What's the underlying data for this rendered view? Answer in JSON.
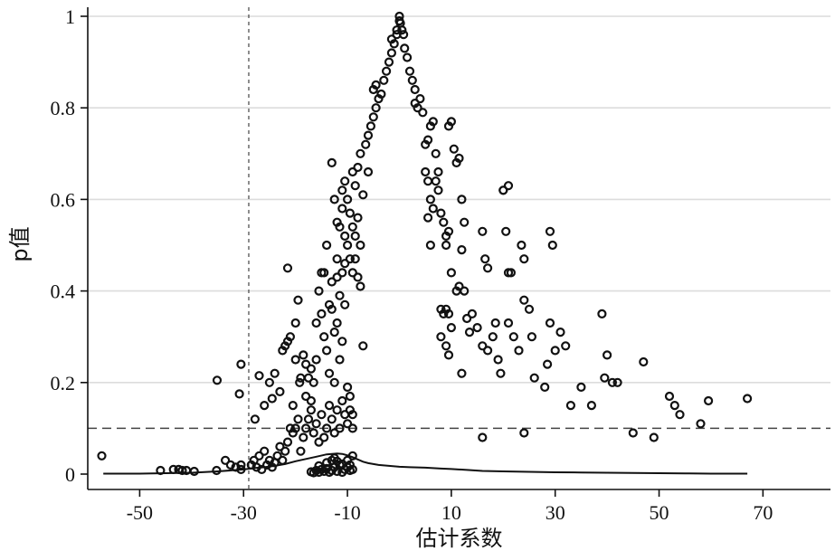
{
  "chart_data": {
    "type": "scatter",
    "title": "",
    "xlabel": "估计系数",
    "ylabel": "p值",
    "xlim": [
      -60,
      83
    ],
    "ylim": [
      0,
      1.01
    ],
    "x_ticks": [
      -50,
      -30,
      -10,
      10,
      30,
      50,
      70
    ],
    "x_tick_labels": [
      "-50",
      "-30",
      "-10",
      "10",
      "30",
      "50",
      "70"
    ],
    "y_ticks": [
      0,
      0.2,
      0.4,
      0.6,
      0.8,
      1
    ],
    "y_tick_labels": [
      "0",
      "0.2",
      "0.4",
      "0.6",
      "0.8",
      "1"
    ],
    "grid": "horizontal",
    "reference_lines": {
      "horizontal_y": 0.1,
      "vertical_x": -29
    },
    "points": [
      [
        -57.3,
        0.04
      ],
      [
        -46,
        0.008
      ],
      [
        -43.5,
        0.01
      ],
      [
        -42.5,
        0.01
      ],
      [
        -41.8,
        0.008
      ],
      [
        -41,
        0.008
      ],
      [
        -39.5,
        0.006
      ],
      [
        -35.2,
        0.008
      ],
      [
        -33.5,
        0.03
      ],
      [
        -32.5,
        0.02
      ],
      [
        -31.5,
        0.015
      ],
      [
        -30.5,
        0.01
      ],
      [
        -30.5,
        0.02
      ],
      [
        -35.1,
        0.205
      ],
      [
        -30.8,
        0.175
      ],
      [
        -30.5,
        0.24
      ],
      [
        -28.5,
        0.02
      ],
      [
        -28,
        0.03
      ],
      [
        -27.5,
        0.015
      ],
      [
        -27,
        0.04
      ],
      [
        -26.5,
        0.01
      ],
      [
        -26,
        0.05
      ],
      [
        -25.5,
        0.02
      ],
      [
        -25,
        0.03
      ],
      [
        -24.5,
        0.015
      ],
      [
        -24,
        0.025
      ],
      [
        -23.5,
        0.04
      ],
      [
        -23,
        0.06
      ],
      [
        -22.5,
        0.03
      ],
      [
        -22,
        0.05
      ],
      [
        -21.5,
        0.07
      ],
      [
        -21,
        0.1
      ],
      [
        -20.5,
        0.09
      ],
      [
        -20,
        0.1
      ],
      [
        -19.5,
        0.12
      ],
      [
        -19,
        0.05
      ],
      [
        -18.5,
        0.08
      ],
      [
        -27.8,
        0.12
      ],
      [
        -27,
        0.215
      ],
      [
        -26,
        0.15
      ],
      [
        -25,
        0.2
      ],
      [
        -24.5,
        0.165
      ],
      [
        -24,
        0.22
      ],
      [
        -23,
        0.18
      ],
      [
        -22.5,
        0.27
      ],
      [
        -22,
        0.28
      ],
      [
        -21.5,
        0.29
      ],
      [
        -21,
        0.3
      ],
      [
        -20.5,
        0.15
      ],
      [
        -20,
        0.33
      ],
      [
        -19.5,
        0.38
      ],
      [
        -21.5,
        0.45
      ],
      [
        -20,
        0.25
      ],
      [
        -19.2,
        0.2
      ],
      [
        -19,
        0.21
      ],
      [
        -18.5,
        0.26
      ],
      [
        -18,
        0.17
      ],
      [
        -18,
        0.24
      ],
      [
        -17.5,
        0.21
      ],
      [
        -17,
        0.23
      ],
      [
        -17,
        0.14
      ],
      [
        -16.5,
        0.2
      ],
      [
        -16,
        0.25
      ],
      [
        -16,
        0.33
      ],
      [
        -15.5,
        0.4
      ],
      [
        -15,
        0.44
      ],
      [
        -15,
        0.35
      ],
      [
        -14.5,
        0.44
      ],
      [
        -14.5,
        0.3
      ],
      [
        -14,
        0.5
      ],
      [
        -14,
        0.27
      ],
      [
        -13.5,
        0.37
      ],
      [
        -13.5,
        0.22
      ],
      [
        -13,
        0.36
      ],
      [
        -13,
        0.42
      ],
      [
        -12.5,
        0.31
      ],
      [
        -12.5,
        0.2
      ],
      [
        -12,
        0.33
      ],
      [
        -12,
        0.47
      ],
      [
        -11.5,
        0.39
      ],
      [
        -11.5,
        0.25
      ],
      [
        -11,
        0.44
      ],
      [
        -11,
        0.29
      ],
      [
        -10.5,
        0.46
      ],
      [
        -10.5,
        0.37
      ],
      [
        -18,
        0.1
      ],
      [
        -17.5,
        0.12
      ],
      [
        -17,
        0.16
      ],
      [
        -16.5,
        0.09
      ],
      [
        -16,
        0.11
      ],
      [
        -15.5,
        0.07
      ],
      [
        -15,
        0.13
      ],
      [
        -14.5,
        0.08
      ],
      [
        -14,
        0.1
      ],
      [
        -13.5,
        0.15
      ],
      [
        -13,
        0.12
      ],
      [
        -12.5,
        0.09
      ],
      [
        -12,
        0.14
      ],
      [
        -11.5,
        0.1
      ],
      [
        -11,
        0.16
      ],
      [
        -10.5,
        0.13
      ],
      [
        -10,
        0.19
      ],
      [
        -10,
        0.11
      ],
      [
        -9.5,
        0.14
      ],
      [
        -9.5,
        0.17
      ],
      [
        -9,
        0.1
      ],
      [
        -9,
        0.13
      ],
      [
        -17,
        0.005
      ],
      [
        -16.5,
        0.003
      ],
      [
        -16,
        0.008
      ],
      [
        -15.5,
        0.004
      ],
      [
        -15,
        0.01
      ],
      [
        -14.5,
        0.006
      ],
      [
        -14,
        0.012
      ],
      [
        -13.5,
        0.004
      ],
      [
        -13,
        0.008
      ],
      [
        -12.5,
        0.015
      ],
      [
        -12,
        0.006
      ],
      [
        -11.5,
        0.02
      ],
      [
        -11,
        0.004
      ],
      [
        -10.5,
        0.01
      ],
      [
        -10,
        0.03
      ],
      [
        -10,
        0.015
      ],
      [
        -9.5,
        0.02
      ],
      [
        -9.5,
        0.008
      ],
      [
        -9,
        0.04
      ],
      [
        -9,
        0.01
      ],
      [
        -14,
        0.025
      ],
      [
        -13,
        0.03
      ],
      [
        -12,
        0.028
      ],
      [
        -11,
        0.022
      ],
      [
        -15.5,
        0.018
      ],
      [
        -12.5,
        0.035
      ],
      [
        -13,
        0.68
      ],
      [
        -12.5,
        0.6
      ],
      [
        -12,
        0.55
      ],
      [
        -11.5,
        0.54
      ],
      [
        -11,
        0.62
      ],
      [
        -10.5,
        0.64
      ],
      [
        -10,
        0.6
      ],
      [
        -10,
        0.5
      ],
      [
        -9.5,
        0.57
      ],
      [
        -9.5,
        0.47
      ],
      [
        -9,
        0.66
      ],
      [
        -9,
        0.54
      ],
      [
        -8.5,
        0.63
      ],
      [
        -8.5,
        0.52
      ],
      [
        -8,
        0.67
      ],
      [
        -8,
        0.56
      ],
      [
        -7.5,
        0.7
      ],
      [
        -7.5,
        0.5
      ],
      [
        -7,
        0.61
      ],
      [
        -6.5,
        0.72
      ],
      [
        -6,
        0.74
      ],
      [
        -6,
        0.66
      ],
      [
        -5.5,
        0.76
      ],
      [
        -5,
        0.78
      ],
      [
        -11,
        0.58
      ],
      [
        -10.5,
        0.52
      ],
      [
        -12,
        0.43
      ],
      [
        -9,
        0.44
      ],
      [
        -8.5,
        0.47
      ],
      [
        -8,
        0.43
      ],
      [
        -7.5,
        0.41
      ],
      [
        -7,
        0.28
      ],
      [
        -5,
        0.84
      ],
      [
        -4.5,
        0.85
      ],
      [
        -4.5,
        0.8
      ],
      [
        -4,
        0.82
      ],
      [
        -3.5,
        0.83
      ],
      [
        -3,
        0.86
      ],
      [
        -2.5,
        0.88
      ],
      [
        -2,
        0.9
      ],
      [
        -1.5,
        0.92
      ],
      [
        -1.5,
        0.95
      ],
      [
        -1,
        0.94
      ],
      [
        -0.5,
        0.97
      ],
      [
        -0.5,
        0.96
      ],
      [
        0,
        0.99
      ],
      [
        0,
        1
      ],
      [
        0.2,
        0.985
      ],
      [
        0.5,
        0.97
      ],
      [
        0.8,
        0.96
      ],
      [
        1,
        0.93
      ],
      [
        1.5,
        0.91
      ],
      [
        2,
        0.88
      ],
      [
        2.5,
        0.86
      ],
      [
        3,
        0.84
      ],
      [
        3.5,
        0.8
      ],
      [
        3,
        0.81
      ],
      [
        4,
        0.82
      ],
      [
        4.5,
        0.79
      ],
      [
        5,
        0.72
      ],
      [
        5.5,
        0.73
      ],
      [
        6,
        0.76
      ],
      [
        6.5,
        0.77
      ],
      [
        7,
        0.7
      ],
      [
        7.5,
        0.66
      ],
      [
        5,
        0.66
      ],
      [
        5.5,
        0.64
      ],
      [
        6,
        0.6
      ],
      [
        6.5,
        0.58
      ],
      [
        7,
        0.64
      ],
      [
        5.5,
        0.56
      ],
      [
        6,
        0.5
      ],
      [
        7.5,
        0.62
      ],
      [
        8,
        0.57
      ],
      [
        8.5,
        0.55
      ],
      [
        9,
        0.52
      ],
      [
        9.5,
        0.76
      ],
      [
        10,
        0.77
      ],
      [
        10.5,
        0.71
      ],
      [
        11,
        0.68
      ],
      [
        11.5,
        0.69
      ],
      [
        12,
        0.6
      ],
      [
        12.5,
        0.55
      ],
      [
        9,
        0.5
      ],
      [
        9.5,
        0.53
      ],
      [
        10,
        0.44
      ],
      [
        11,
        0.4
      ],
      [
        11.5,
        0.41
      ],
      [
        12,
        0.49
      ],
      [
        8,
        0.36
      ],
      [
        8.5,
        0.35
      ],
      [
        9,
        0.36
      ],
      [
        9.5,
        0.35
      ],
      [
        8,
        0.3
      ],
      [
        9,
        0.28
      ],
      [
        9.5,
        0.26
      ],
      [
        10,
        0.32
      ],
      [
        12,
        0.22
      ],
      [
        12.5,
        0.4
      ],
      [
        13,
        0.34
      ],
      [
        13.5,
        0.31
      ],
      [
        14,
        0.35
      ],
      [
        15,
        0.32
      ],
      [
        16,
        0.53
      ],
      [
        16.5,
        0.47
      ],
      [
        17,
        0.45
      ],
      [
        18,
        0.3
      ],
      [
        18.5,
        0.33
      ],
      [
        19,
        0.25
      ],
      [
        19.5,
        0.22
      ],
      [
        20,
        0.62
      ],
      [
        20,
        0.62
      ],
      [
        21,
        0.63
      ],
      [
        20.5,
        0.53
      ],
      [
        21,
        0.44
      ],
      [
        21.5,
        0.44
      ],
      [
        21,
        0.33
      ],
      [
        22,
        0.3
      ],
      [
        23,
        0.27
      ],
      [
        23.5,
        0.5
      ],
      [
        24,
        0.47
      ],
      [
        24,
        0.38
      ],
      [
        25,
        0.36
      ],
      [
        25.5,
        0.3
      ],
      [
        26,
        0.21
      ],
      [
        16,
        0.28
      ],
      [
        17,
        0.27
      ],
      [
        16,
        0.08
      ],
      [
        24,
        0.09
      ],
      [
        28,
        0.19
      ],
      [
        28.5,
        0.24
      ],
      [
        29,
        0.33
      ],
      [
        29,
        0.53
      ],
      [
        29.5,
        0.5
      ],
      [
        30,
        0.27
      ],
      [
        31,
        0.31
      ],
      [
        32,
        0.28
      ],
      [
        33,
        0.15
      ],
      [
        35,
        0.19
      ],
      [
        37,
        0.15
      ],
      [
        39,
        0.35
      ],
      [
        39.5,
        0.21
      ],
      [
        40,
        0.26
      ],
      [
        41,
        0.2
      ],
      [
        42,
        0.2
      ],
      [
        45,
        0.09
      ],
      [
        47,
        0.245
      ],
      [
        49,
        0.08
      ],
      [
        52,
        0.17
      ],
      [
        53,
        0.15
      ],
      [
        54,
        0.13
      ],
      [
        58,
        0.11
      ],
      [
        59.5,
        0.16
      ],
      [
        67,
        0.165
      ]
    ],
    "density_curve": [
      [
        -57,
        0.001
      ],
      [
        -50,
        0.001
      ],
      [
        -45,
        0.002
      ],
      [
        -40,
        0.003
      ],
      [
        -35,
        0.006
      ],
      [
        -30,
        0.01
      ],
      [
        -28,
        0.013
      ],
      [
        -26,
        0.015
      ],
      [
        -24,
        0.018
      ],
      [
        -22,
        0.022
      ],
      [
        -20,
        0.028
      ],
      [
        -18,
        0.033
      ],
      [
        -16,
        0.038
      ],
      [
        -14,
        0.043
      ],
      [
        -12,
        0.045
      ],
      [
        -11,
        0.044
      ],
      [
        -10,
        0.041
      ],
      [
        -9,
        0.037
      ],
      [
        -8,
        0.032
      ],
      [
        -7,
        0.027
      ],
      [
        -6,
        0.024
      ],
      [
        -4,
        0.02
      ],
      [
        -2,
        0.018
      ],
      [
        0,
        0.016
      ],
      [
        2,
        0.015
      ],
      [
        5,
        0.014
      ],
      [
        8,
        0.012
      ],
      [
        10,
        0.011
      ],
      [
        13,
        0.009
      ],
      [
        16,
        0.007
      ],
      [
        20,
        0.006
      ],
      [
        25,
        0.005
      ],
      [
        30,
        0.004
      ],
      [
        35,
        0.0035
      ],
      [
        40,
        0.003
      ],
      [
        45,
        0.0025
      ],
      [
        50,
        0.002
      ],
      [
        55,
        0.0015
      ],
      [
        60,
        0.001
      ],
      [
        67,
        0.001
      ]
    ]
  }
}
